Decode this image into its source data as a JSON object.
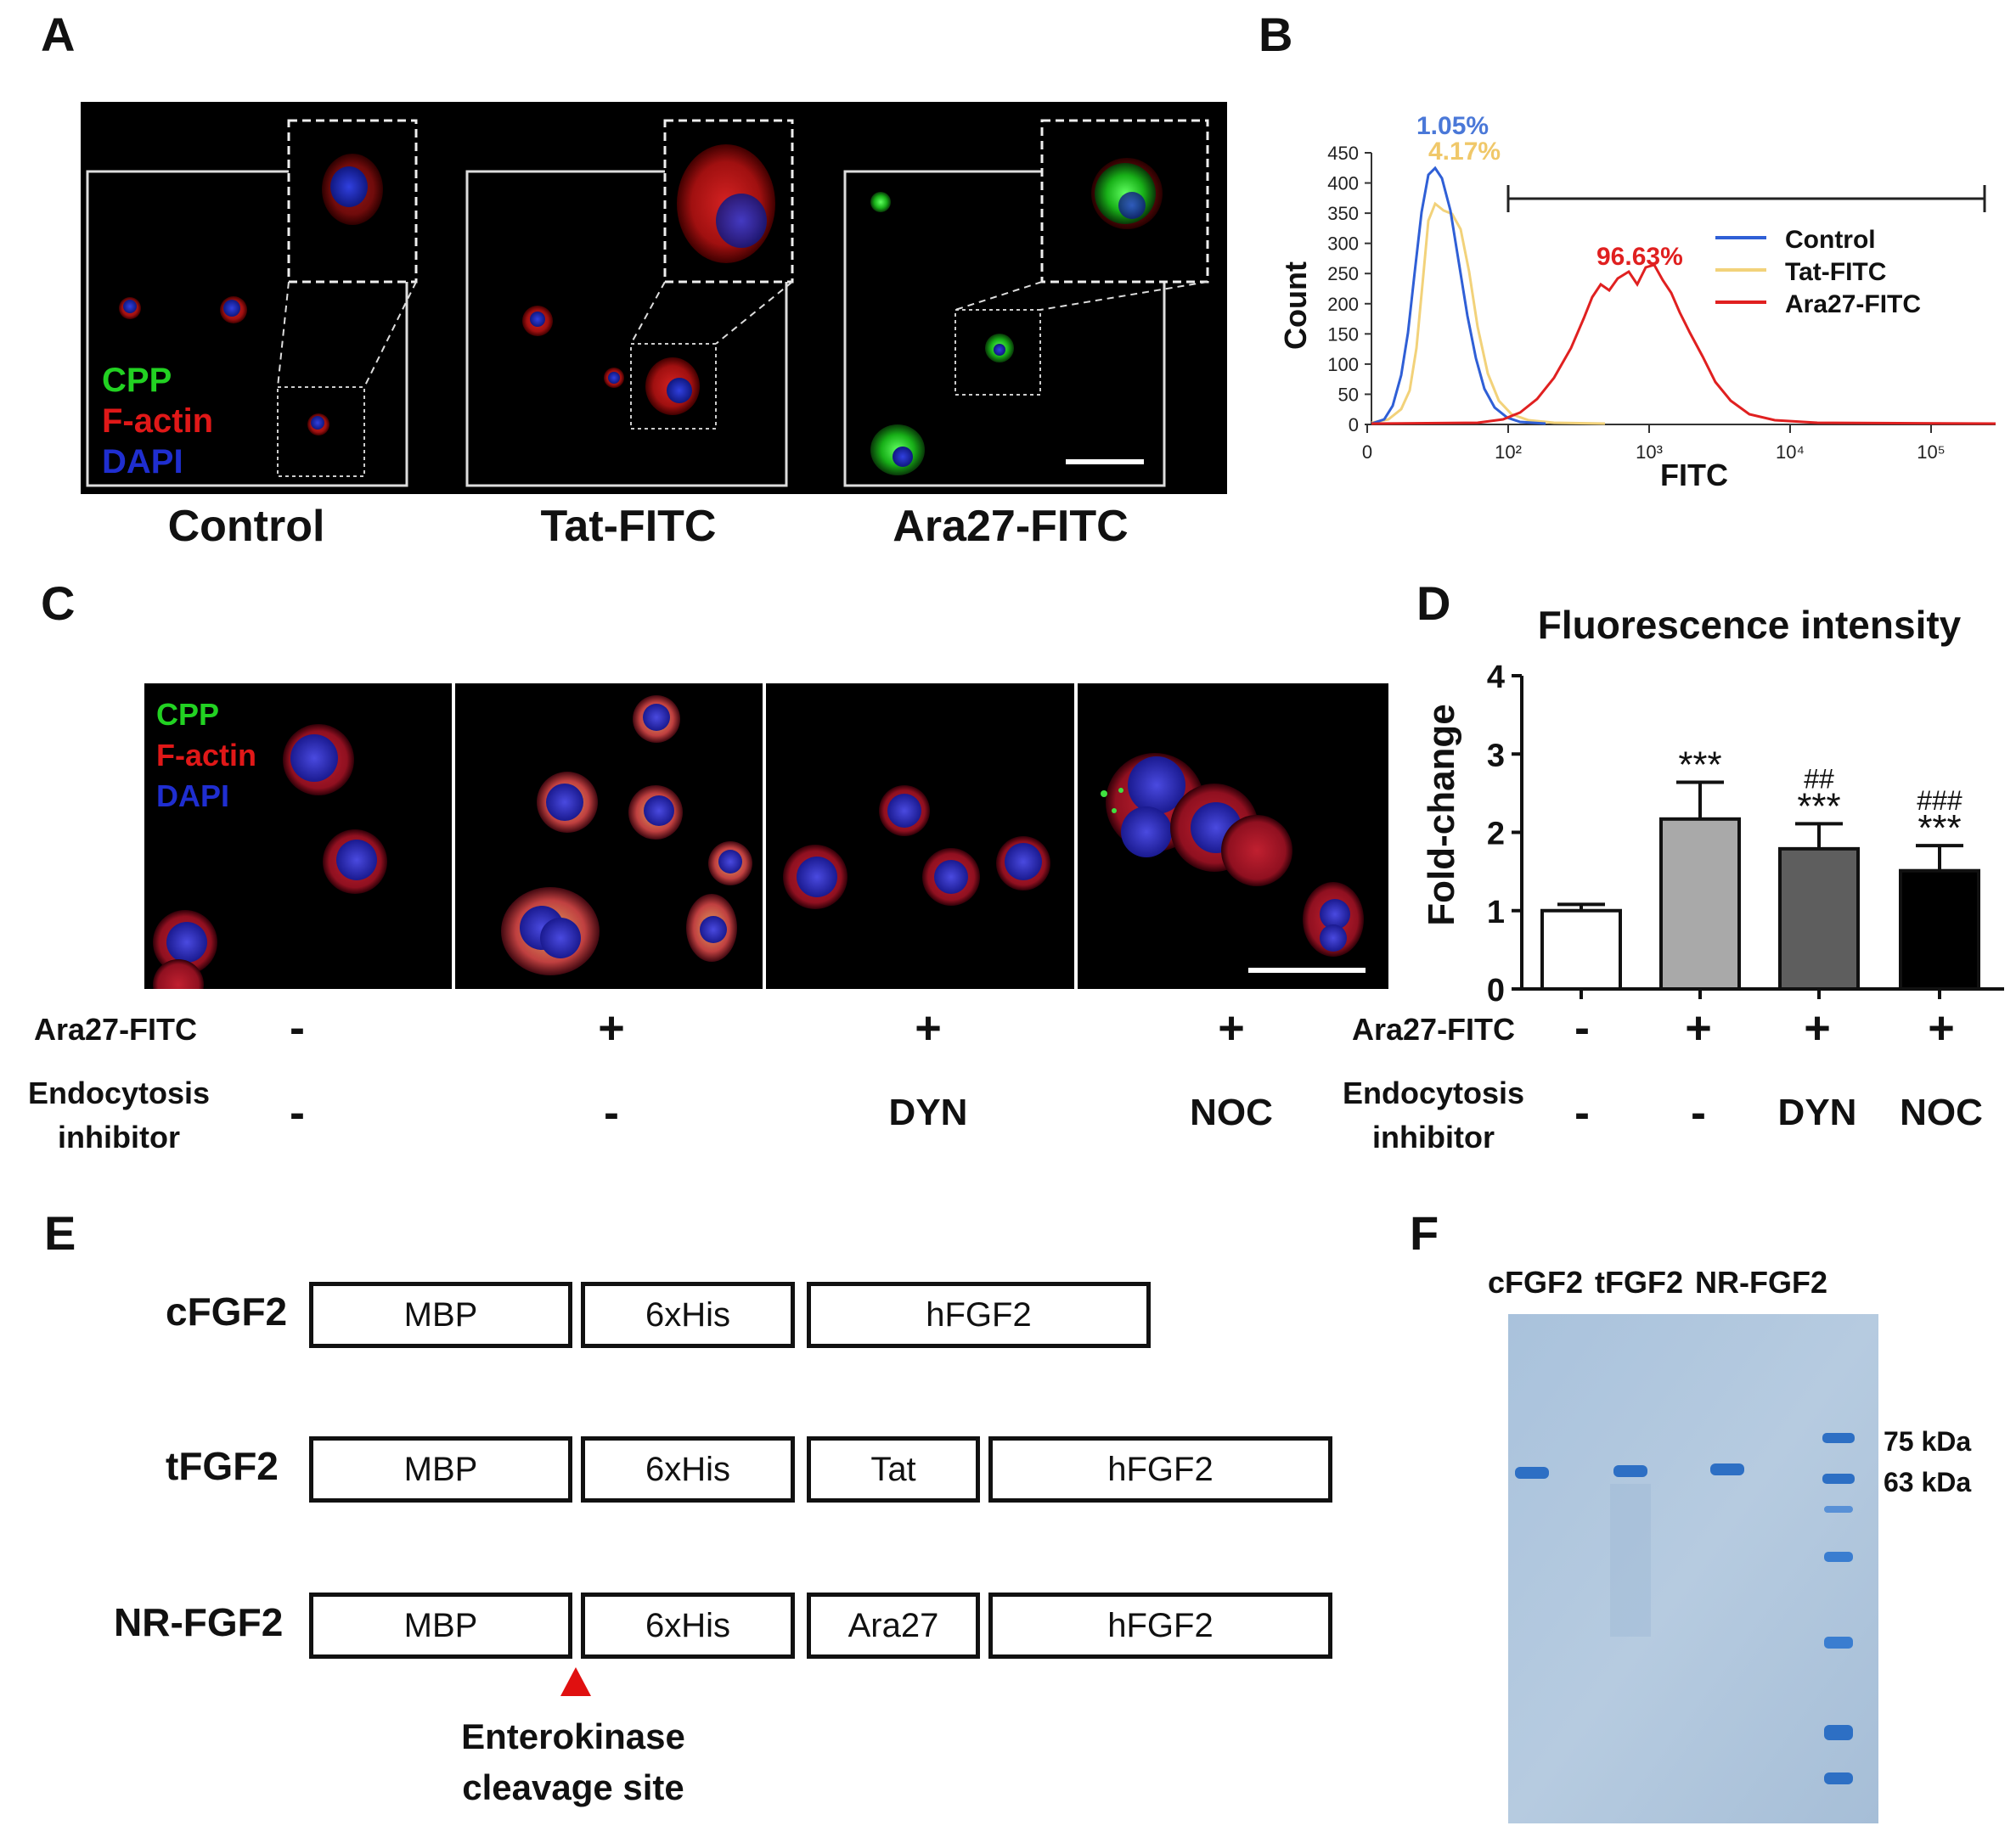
{
  "panels": {
    "A": "A",
    "B": "B",
    "C": "C",
    "D": "D",
    "E": "E",
    "F": "F"
  },
  "panelA": {
    "legend": [
      {
        "label": "CPP",
        "color": "#22d222"
      },
      {
        "label": "F-actin",
        "color": "#e01818"
      },
      {
        "label": "DAPI",
        "color": "#1f2ed0"
      }
    ],
    "captions": [
      "Control",
      "Tat-FITC",
      "Ara27-FITC"
    ]
  },
  "panelB": {
    "ylabel": "Count",
    "xlabel": "FITC",
    "yticks": [
      "450",
      "400",
      "350",
      "300",
      "250",
      "200",
      "150",
      "100",
      "50",
      "0"
    ],
    "xticks": [
      "0",
      "10²",
      "10³",
      "10⁴",
      "10⁵"
    ],
    "legend": [
      {
        "label": "Control",
        "color": "#2f5fd6"
      },
      {
        "label": "Tat-FITC",
        "color": "#f2d27a"
      },
      {
        "label": "Ara27-FITC",
        "color": "#e02020"
      }
    ],
    "annotations": [
      {
        "text": "1.05%",
        "color": "#4a78d8"
      },
      {
        "text": "4.17%",
        "color": "#f0c86a"
      },
      {
        "text": "96.63%",
        "color": "#e02020"
      }
    ]
  },
  "panelC": {
    "legend": [
      {
        "label": "CPP",
        "color": "#22d222"
      },
      {
        "label": "F-actin",
        "color": "#e01818"
      },
      {
        "label": "DAPI",
        "color": "#1f2ed0"
      }
    ],
    "row1_label": "Ara27-FITC",
    "row1": [
      "-",
      "+",
      "+",
      "+"
    ],
    "row2_label_line1": "Endocytosis",
    "row2_label_line2": "inhibitor",
    "row2": [
      "-",
      "-",
      "DYN",
      "NOC"
    ]
  },
  "chart_data": {
    "type": "bar",
    "title": "Fluorescence intensity",
    "xlabel": "",
    "ylabel": "Fold-change",
    "ylim": [
      0,
      4
    ],
    "yticks": [
      "0",
      "1",
      "2",
      "3",
      "4"
    ],
    "categories": [
      "Control",
      "Ara27-FITC",
      "Ara27-FITC + DYN",
      "Ara27-FITC + NOC"
    ],
    "values": [
      1.0,
      2.17,
      1.79,
      1.51
    ],
    "errors": [
      0.08,
      0.47,
      0.32,
      0.32
    ],
    "colors": [
      "#ffffff",
      "#a9a9a9",
      "#5e5e5e",
      "#000000"
    ],
    "sig_top": [
      "",
      "",
      "##",
      "###"
    ],
    "sig_bottom": [
      "",
      "***",
      "***",
      "***"
    ],
    "row1_label": "Ara27-FITC",
    "row1": [
      "-",
      "+",
      "+",
      "+"
    ],
    "row2_label_line1": "Endocytosis",
    "row2_label_line2": "inhibitor",
    "row2": [
      "-",
      "-",
      "DYN",
      "NOC"
    ]
  },
  "panelE": {
    "constructs": [
      {
        "name": "cFGF2",
        "segments": [
          "MBP",
          "6xHis",
          "hFGF2"
        ]
      },
      {
        "name": "tFGF2",
        "segments": [
          "MBP",
          "6xHis",
          "Tat",
          "hFGF2"
        ]
      },
      {
        "name": "NR-FGF2",
        "segments": [
          "MBP",
          "6xHis",
          "Ara27",
          "hFGF2"
        ]
      }
    ],
    "site_line1": "Enterokinase",
    "site_line2": "cleavage site"
  },
  "panelF": {
    "lanes": [
      "cFGF2",
      "tFGF2",
      "NR-FGF2"
    ],
    "markers": [
      "75 kDa",
      "63 kDa"
    ]
  }
}
